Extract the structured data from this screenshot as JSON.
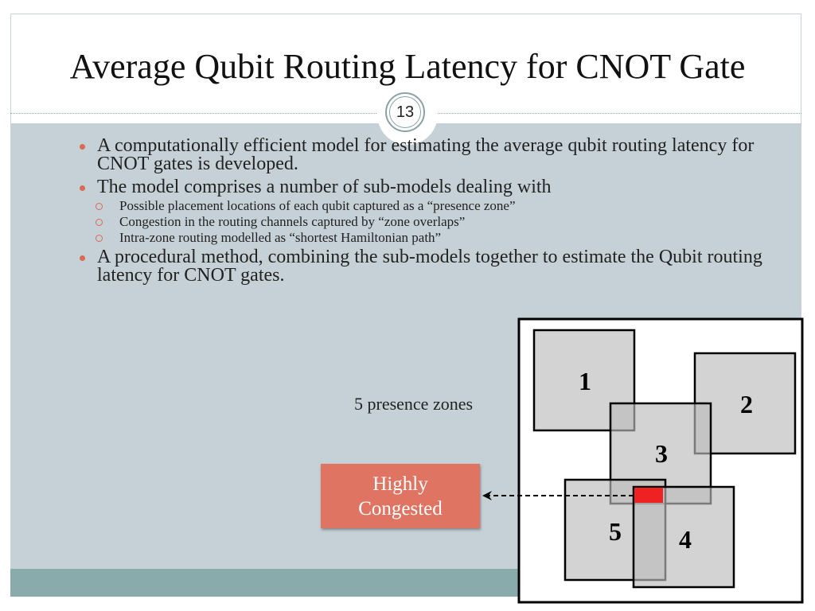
{
  "slide": {
    "title": "Average Qubit Routing Latency for CNOT Gate",
    "page_number": "13",
    "bullets": [
      {
        "text": "A computationally efficient model for estimating the average qubit routing latency for CNOT gates is developed.",
        "sub": []
      },
      {
        "text": "The model comprises a number of sub-models dealing with",
        "sub": [
          "Possible placement locations of each qubit captured as a “presence zone”",
          "Congestion in the routing channels captured by “zone overlaps”",
          "Intra-zone routing modelled as “shortest Hamiltonian path”"
        ]
      },
      {
        "text": "A procedural method, combining the sub-models together to estimate the Qubit routing latency for CNOT gates.",
        "sub": []
      }
    ]
  },
  "figure": {
    "zones_label": "5 presence zones",
    "callout_line1": "Highly",
    "callout_line2": "Congested",
    "zone_labels": [
      "1",
      "2",
      "3",
      "4",
      "5"
    ]
  },
  "colors": {
    "content_bg": "#c5d1d7",
    "footer_band": "#8aabac",
    "bullet": "#d96a53",
    "callout": "#e07463",
    "zone_fill": "#d3d3d3",
    "congestion": "#ee2222"
  }
}
